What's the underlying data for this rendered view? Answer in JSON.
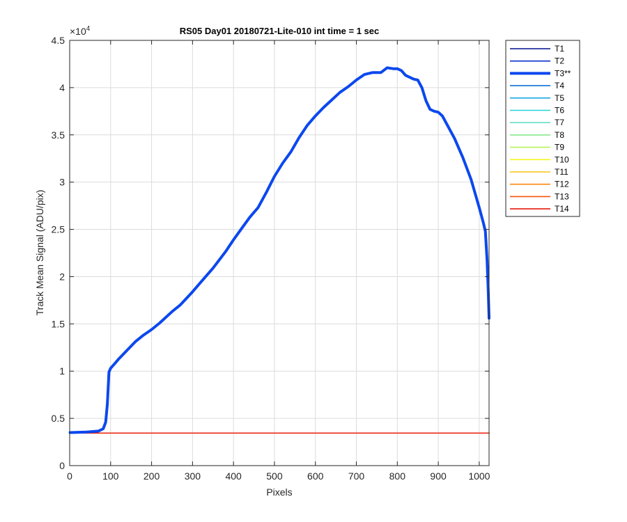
{
  "chart_data": {
    "type": "line",
    "title": "RS05 Day01 20180721-Lite-010 int time = 1 sec",
    "xlabel": "Pixels",
    "ylabel": "Track Mean Signal (ADU/pix)",
    "y_exponent_label": "×10",
    "y_exponent_power": "4",
    "xlim": [
      0,
      1024
    ],
    "ylim": [
      0,
      45000
    ],
    "x_ticks": [
      0,
      100,
      200,
      300,
      400,
      500,
      600,
      700,
      800,
      900,
      1000
    ],
    "x_tick_labels": [
      "0",
      "100",
      "200",
      "300",
      "400",
      "500",
      "600",
      "700",
      "800",
      "900",
      "1000"
    ],
    "y_ticks": [
      0,
      5000,
      10000,
      15000,
      20000,
      25000,
      30000,
      35000,
      40000,
      45000
    ],
    "y_tick_labels": [
      "0",
      "0.5",
      "1",
      "1.5",
      "2",
      "2.5",
      "3",
      "3.5",
      "4",
      "4.5"
    ],
    "grid": true,
    "legend_position": "outside-right",
    "highlighted_series": "T3**",
    "baseline_value": 3450,
    "series": [
      {
        "name": "T1",
        "color": "#000f8c",
        "values": "baseline"
      },
      {
        "name": "T2",
        "color": "#0a2ccc",
        "values": "baseline"
      },
      {
        "name": "T3**",
        "color": "#0b48ee",
        "x": [
          1,
          40,
          70,
          82,
          88,
          92,
          96,
          100,
          110,
          120,
          140,
          160,
          180,
          200,
          220,
          250,
          270,
          300,
          320,
          350,
          380,
          400,
          420,
          440,
          450,
          460,
          480,
          500,
          520,
          540,
          560,
          580,
          600,
          620,
          640,
          660,
          680,
          700,
          720,
          740,
          760,
          775,
          790,
          800,
          810,
          820,
          840,
          850,
          860,
          870,
          880,
          890,
          900,
          910,
          920,
          940,
          960,
          980,
          1000,
          1010,
          1015,
          1019,
          1022,
          1024
        ],
        "values": [
          3500,
          3550,
          3650,
          3900,
          4600,
          6500,
          9900,
          10300,
          10800,
          11300,
          12200,
          13100,
          13800,
          14400,
          15100,
          16300,
          17000,
          18400,
          19400,
          20900,
          22600,
          23900,
          25100,
          26300,
          26800,
          27300,
          28900,
          30600,
          32000,
          33200,
          34700,
          36000,
          37000,
          37900,
          38700,
          39500,
          40100,
          40800,
          41400,
          41600,
          41600,
          42100,
          42000,
          42000,
          41800,
          41300,
          40900,
          40800,
          40000,
          38600,
          37700,
          37500,
          37400,
          37000,
          36200,
          34600,
          32600,
          30300,
          27300,
          25700,
          24800,
          21800,
          18500,
          15600
        ]
      },
      {
        "name": "T4",
        "color": "#0d70d8",
        "values": "baseline"
      },
      {
        "name": "T5",
        "color": "#1ba8e6",
        "values": "baseline"
      },
      {
        "name": "T6",
        "color": "#20d4dc",
        "values": "baseline"
      },
      {
        "name": "T7",
        "color": "#66dcc2",
        "values": "baseline"
      },
      {
        "name": "T8",
        "color": "#88e88a",
        "values": "baseline"
      },
      {
        "name": "T9",
        "color": "#b6f45a",
        "values": "baseline"
      },
      {
        "name": "T10",
        "color": "#f8f41c",
        "values": "baseline"
      },
      {
        "name": "T11",
        "color": "#f8c414",
        "values": "baseline"
      },
      {
        "name": "T12",
        "color": "#f8880e",
        "values": "baseline"
      },
      {
        "name": "T13",
        "color": "#f4540c",
        "values": "baseline"
      },
      {
        "name": "T14",
        "color": "#e61a0a",
        "values": "baseline"
      }
    ]
  }
}
